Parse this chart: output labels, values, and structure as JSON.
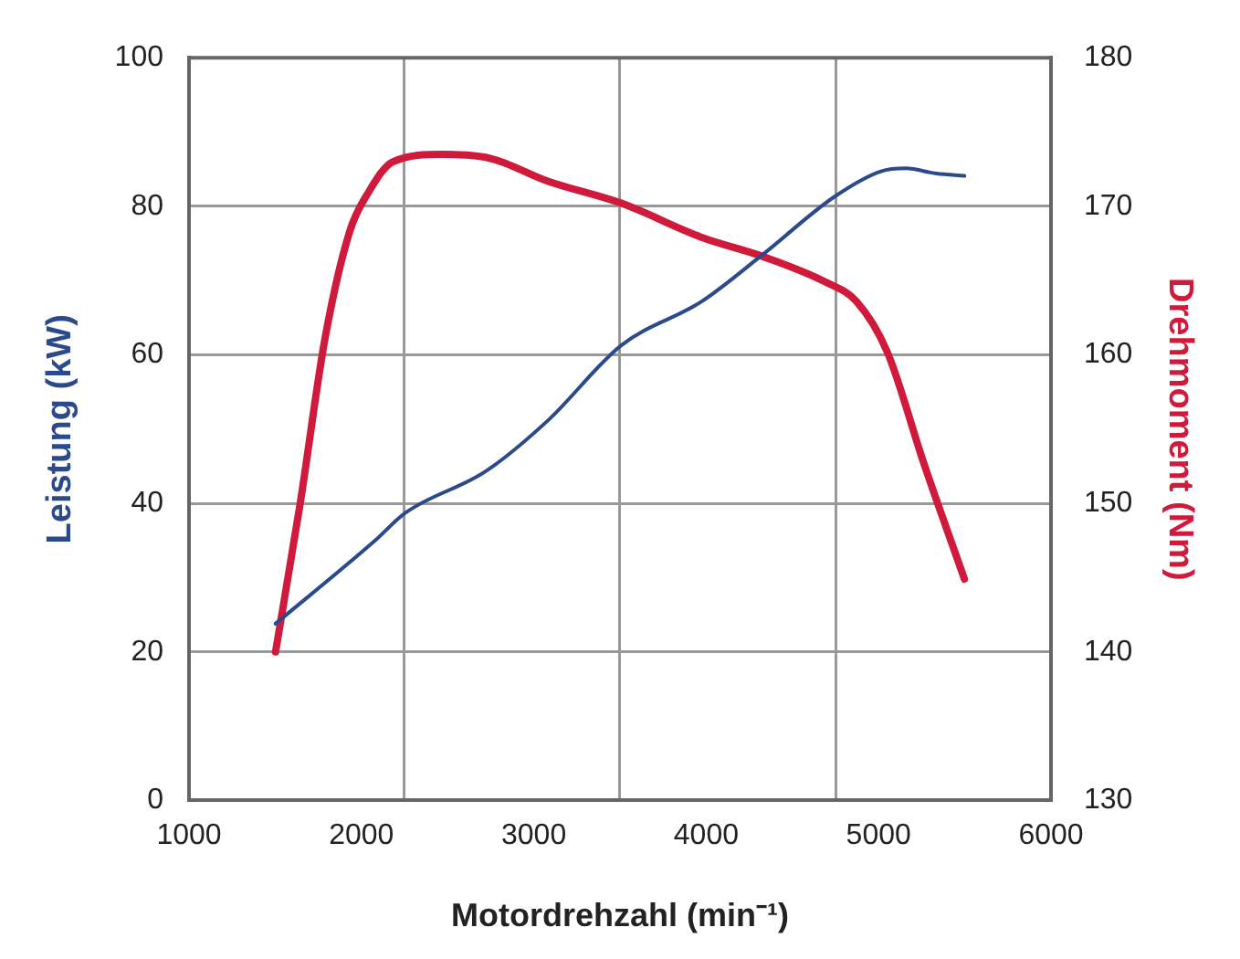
{
  "chart_data": {
    "type": "line",
    "xlabel": "Motordrehzahl (min⁻¹)",
    "ylabel": "Leistung (kW)",
    "y2label": "Drehmoment (Nm)",
    "xlim": [
      1000,
      6000
    ],
    "xticks": [
      1000,
      2000,
      {
        "value": 2250,
        "label": null
      },
      3000,
      {
        "value": 3500,
        "label": null
      },
      4000,
      {
        "value": 4750,
        "label": null
      },
      5000,
      6000
    ],
    "ylim": [
      0,
      100
    ],
    "yticks": [
      0,
      20,
      40,
      60,
      80,
      100
    ],
    "y2lim": [
      130,
      180
    ],
    "y2ticks": [
      130,
      140,
      150,
      160,
      170,
      180
    ],
    "grid": true,
    "legend": false,
    "marker": "none",
    "line_style": "solid",
    "series": [
      {
        "color": "#2b4a8c",
        "x": [
          1502,
          2075,
          2254,
          2720,
          3079,
          3509,
          3975,
          4333,
          4745,
          5014,
          5158,
          5337,
          5498
        ],
        "values": [
          23.8,
          34.9,
          38.7,
          44.3,
          51.1,
          61.3,
          67.2,
          73.6,
          81.3,
          84.7,
          85.1,
          84.4,
          84.1
        ]
      },
      {
        "color": "#d01a3c",
        "axis": "y2",
        "x": [
          1502,
          1645,
          1789,
          1932,
          2039,
          2183,
          2470,
          2756,
          3079,
          3509,
          3975,
          4333,
          4692,
          4871,
          5050,
          5265,
          5498
        ],
        "values": [
          140,
          150,
          161.1,
          168.3,
          170.9,
          173,
          173.5,
          173.2,
          171.7,
          170.2,
          167.9,
          166.6,
          164.9,
          163.6,
          160.2,
          152.6,
          144.9
        ]
      }
    ]
  }
}
